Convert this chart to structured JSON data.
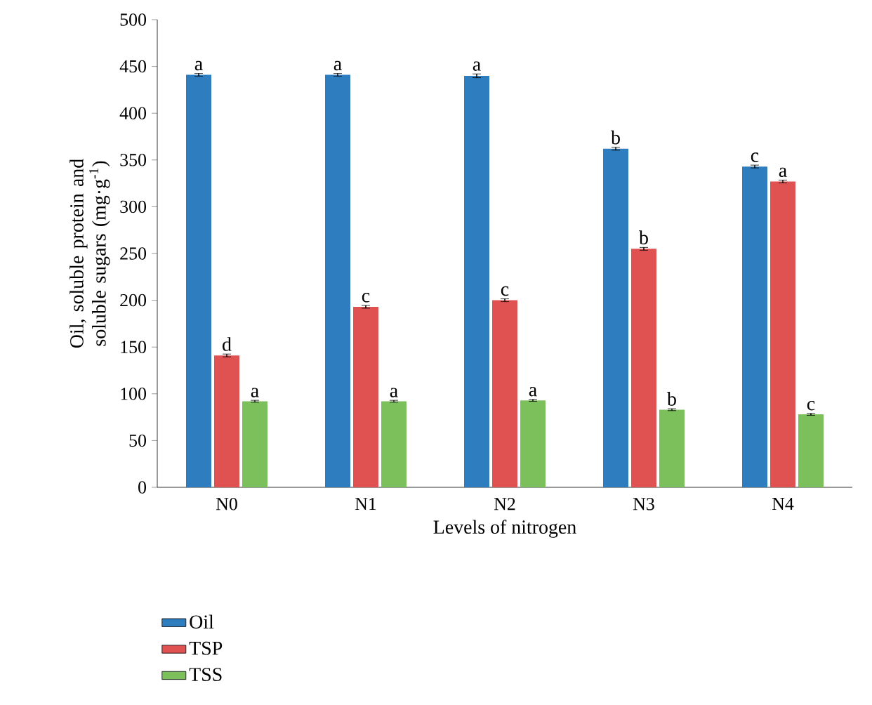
{
  "chart_data": {
    "type": "bar",
    "xlabel": "Levels of nitrogen",
    "ylabel": "Oil, soluble protein and soluble sugars (mg·g$^{-1}$)",
    "categories": [
      "N0",
      "N1",
      "N2",
      "N3",
      "N4"
    ],
    "series": [
      {
        "name": "Oil",
        "color": "#2e7ebf",
        "values": [
          441,
          441,
          440,
          362,
          343
        ],
        "errors": [
          1.5,
          1.5,
          2,
          1.5,
          1.5
        ],
        "value_labels": [
          "a",
          "a",
          "a",
          "b",
          "c"
        ]
      },
      {
        "name": "TSP",
        "color": "#e05252",
        "values": [
          141,
          193,
          200,
          255,
          327
        ],
        "errors": [
          1.5,
          1.5,
          1.5,
          1.5,
          1.5
        ],
        "value_labels": [
          "d",
          "c",
          "c",
          "b",
          "a"
        ]
      },
      {
        "name": "TSS",
        "color": "#7cc05c",
        "values": [
          92,
          92,
          93,
          83,
          78
        ],
        "errors": [
          1,
          1,
          1,
          1,
          1
        ],
        "value_labels": [
          "a",
          "a",
          "a",
          "b",
          "c"
        ]
      }
    ],
    "ylim": [
      0,
      500
    ],
    "yticks": [
      0,
      50,
      100,
      150,
      200,
      250,
      300,
      350,
      400,
      450,
      500
    ],
    "grid": false,
    "legend": "bottom"
  }
}
